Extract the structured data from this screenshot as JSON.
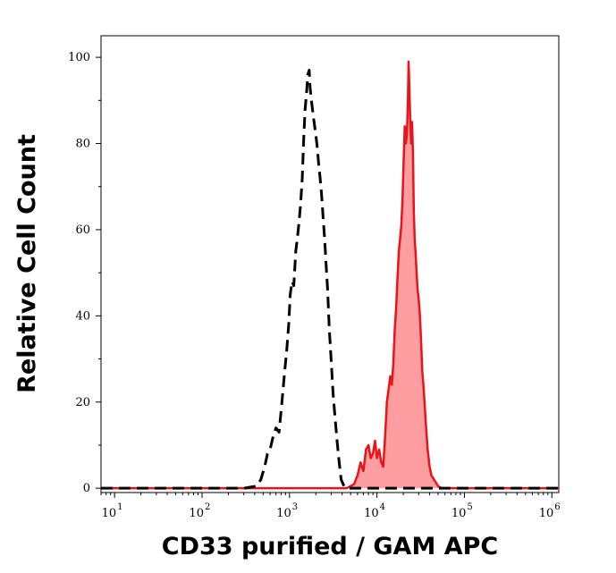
{
  "chart_data": {
    "type": "area",
    "xlabel": "CD33 purified / GAM APC",
    "ylabel": "Relative Cell Count",
    "xscale": "log",
    "xlim": [
      7,
      1200000.0
    ],
    "ylim": [
      -1,
      105
    ],
    "y_ticks": [
      {
        "value": 0,
        "label": "0"
      },
      {
        "value": 20,
        "label": "20"
      },
      {
        "value": 40,
        "label": "40"
      },
      {
        "value": 60,
        "label": "60"
      },
      {
        "value": 80,
        "label": "80"
      },
      {
        "value": 100,
        "label": "100"
      }
    ],
    "x_ticks": [
      {
        "value": 10,
        "base": "10",
        "exp": "1"
      },
      {
        "value": 100,
        "base": "10",
        "exp": "2"
      },
      {
        "value": 1000,
        "base": "10",
        "exp": "3"
      },
      {
        "value": 10000,
        "base": "10",
        "exp": "4"
      },
      {
        "value": 100000,
        "base": "10",
        "exp": "5"
      },
      {
        "value": 1000000,
        "base": "10",
        "exp": "6"
      }
    ],
    "series": [
      {
        "style": "dashed",
        "color": "#000000",
        "points": [
          [
            7,
            0
          ],
          [
            300,
            0
          ],
          [
            420,
            0.5
          ],
          [
            470,
            2
          ],
          [
            520,
            5
          ],
          [
            560,
            8
          ],
          [
            600,
            9
          ],
          [
            650,
            12
          ],
          [
            700,
            14
          ],
          [
            760,
            13
          ],
          [
            820,
            20
          ],
          [
            880,
            27
          ],
          [
            930,
            32
          ],
          [
            980,
            38
          ],
          [
            1020,
            45
          ],
          [
            1070,
            48
          ],
          [
            1120,
            47
          ],
          [
            1180,
            55
          ],
          [
            1230,
            58
          ],
          [
            1290,
            62
          ],
          [
            1340,
            66
          ],
          [
            1400,
            72
          ],
          [
            1460,
            82
          ],
          [
            1510,
            88
          ],
          [
            1570,
            92
          ],
          [
            1620,
            96
          ],
          [
            1680,
            97
          ],
          [
            1720,
            93
          ],
          [
            1780,
            90
          ],
          [
            1830,
            88
          ],
          [
            1880,
            86
          ],
          [
            1940,
            84
          ],
          [
            2000,
            82
          ],
          [
            2080,
            79
          ],
          [
            2160,
            75
          ],
          [
            2240,
            72
          ],
          [
            2330,
            68
          ],
          [
            2420,
            63
          ],
          [
            2520,
            58
          ],
          [
            2620,
            52
          ],
          [
            2730,
            46
          ],
          [
            2850,
            37
          ],
          [
            2950,
            32
          ],
          [
            3050,
            27
          ],
          [
            3150,
            22
          ],
          [
            3300,
            17
          ],
          [
            3500,
            11
          ],
          [
            3700,
            6
          ],
          [
            3900,
            2
          ],
          [
            4200,
            0.5
          ],
          [
            4600,
            0
          ],
          [
            1200000.0,
            0
          ]
        ]
      },
      {
        "style": "filled",
        "color": "#e8141a",
        "fill": "#ff9ea0",
        "points": [
          [
            7,
            0
          ],
          [
            4500,
            0
          ],
          [
            5000,
            0.5
          ],
          [
            5500,
            1
          ],
          [
            6000,
            3
          ],
          [
            6500,
            6
          ],
          [
            7000,
            4
          ],
          [
            7500,
            9
          ],
          [
            8000,
            10
          ],
          [
            8500,
            7
          ],
          [
            9000,
            8
          ],
          [
            9500,
            11
          ],
          [
            10000,
            7
          ],
          [
            10600,
            9
          ],
          [
            11200,
            6
          ],
          [
            11800,
            5
          ],
          [
            12400,
            12
          ],
          [
            13000,
            20
          ],
          [
            13600,
            23
          ],
          [
            14200,
            26
          ],
          [
            14800,
            24
          ],
          [
            15400,
            29
          ],
          [
            16000,
            37
          ],
          [
            16600,
            42
          ],
          [
            17200,
            49
          ],
          [
            17800,
            55
          ],
          [
            18400,
            58
          ],
          [
            19000,
            61
          ],
          [
            19600,
            67
          ],
          [
            20200,
            76
          ],
          [
            20800,
            84
          ],
          [
            21400,
            80
          ],
          [
            22000,
            82
          ],
          [
            22600,
            90
          ],
          [
            23000,
            99
          ],
          [
            23400,
            94
          ],
          [
            24000,
            86
          ],
          [
            24600,
            80
          ],
          [
            25200,
            85
          ],
          [
            25800,
            78
          ],
          [
            26400,
            64
          ],
          [
            27000,
            58
          ],
          [
            27600,
            55
          ],
          [
            28400,
            50
          ],
          [
            29200,
            46
          ],
          [
            30000,
            44
          ],
          [
            31000,
            40
          ],
          [
            32000,
            34
          ],
          [
            33000,
            27
          ],
          [
            34000,
            24
          ],
          [
            35000,
            20
          ],
          [
            36500,
            14
          ],
          [
            38000,
            9
          ],
          [
            40000,
            5
          ],
          [
            42000,
            3
          ],
          [
            45000,
            2
          ],
          [
            50000,
            0.5
          ],
          [
            55000,
            0
          ],
          [
            1200000.0,
            0
          ]
        ]
      }
    ]
  }
}
